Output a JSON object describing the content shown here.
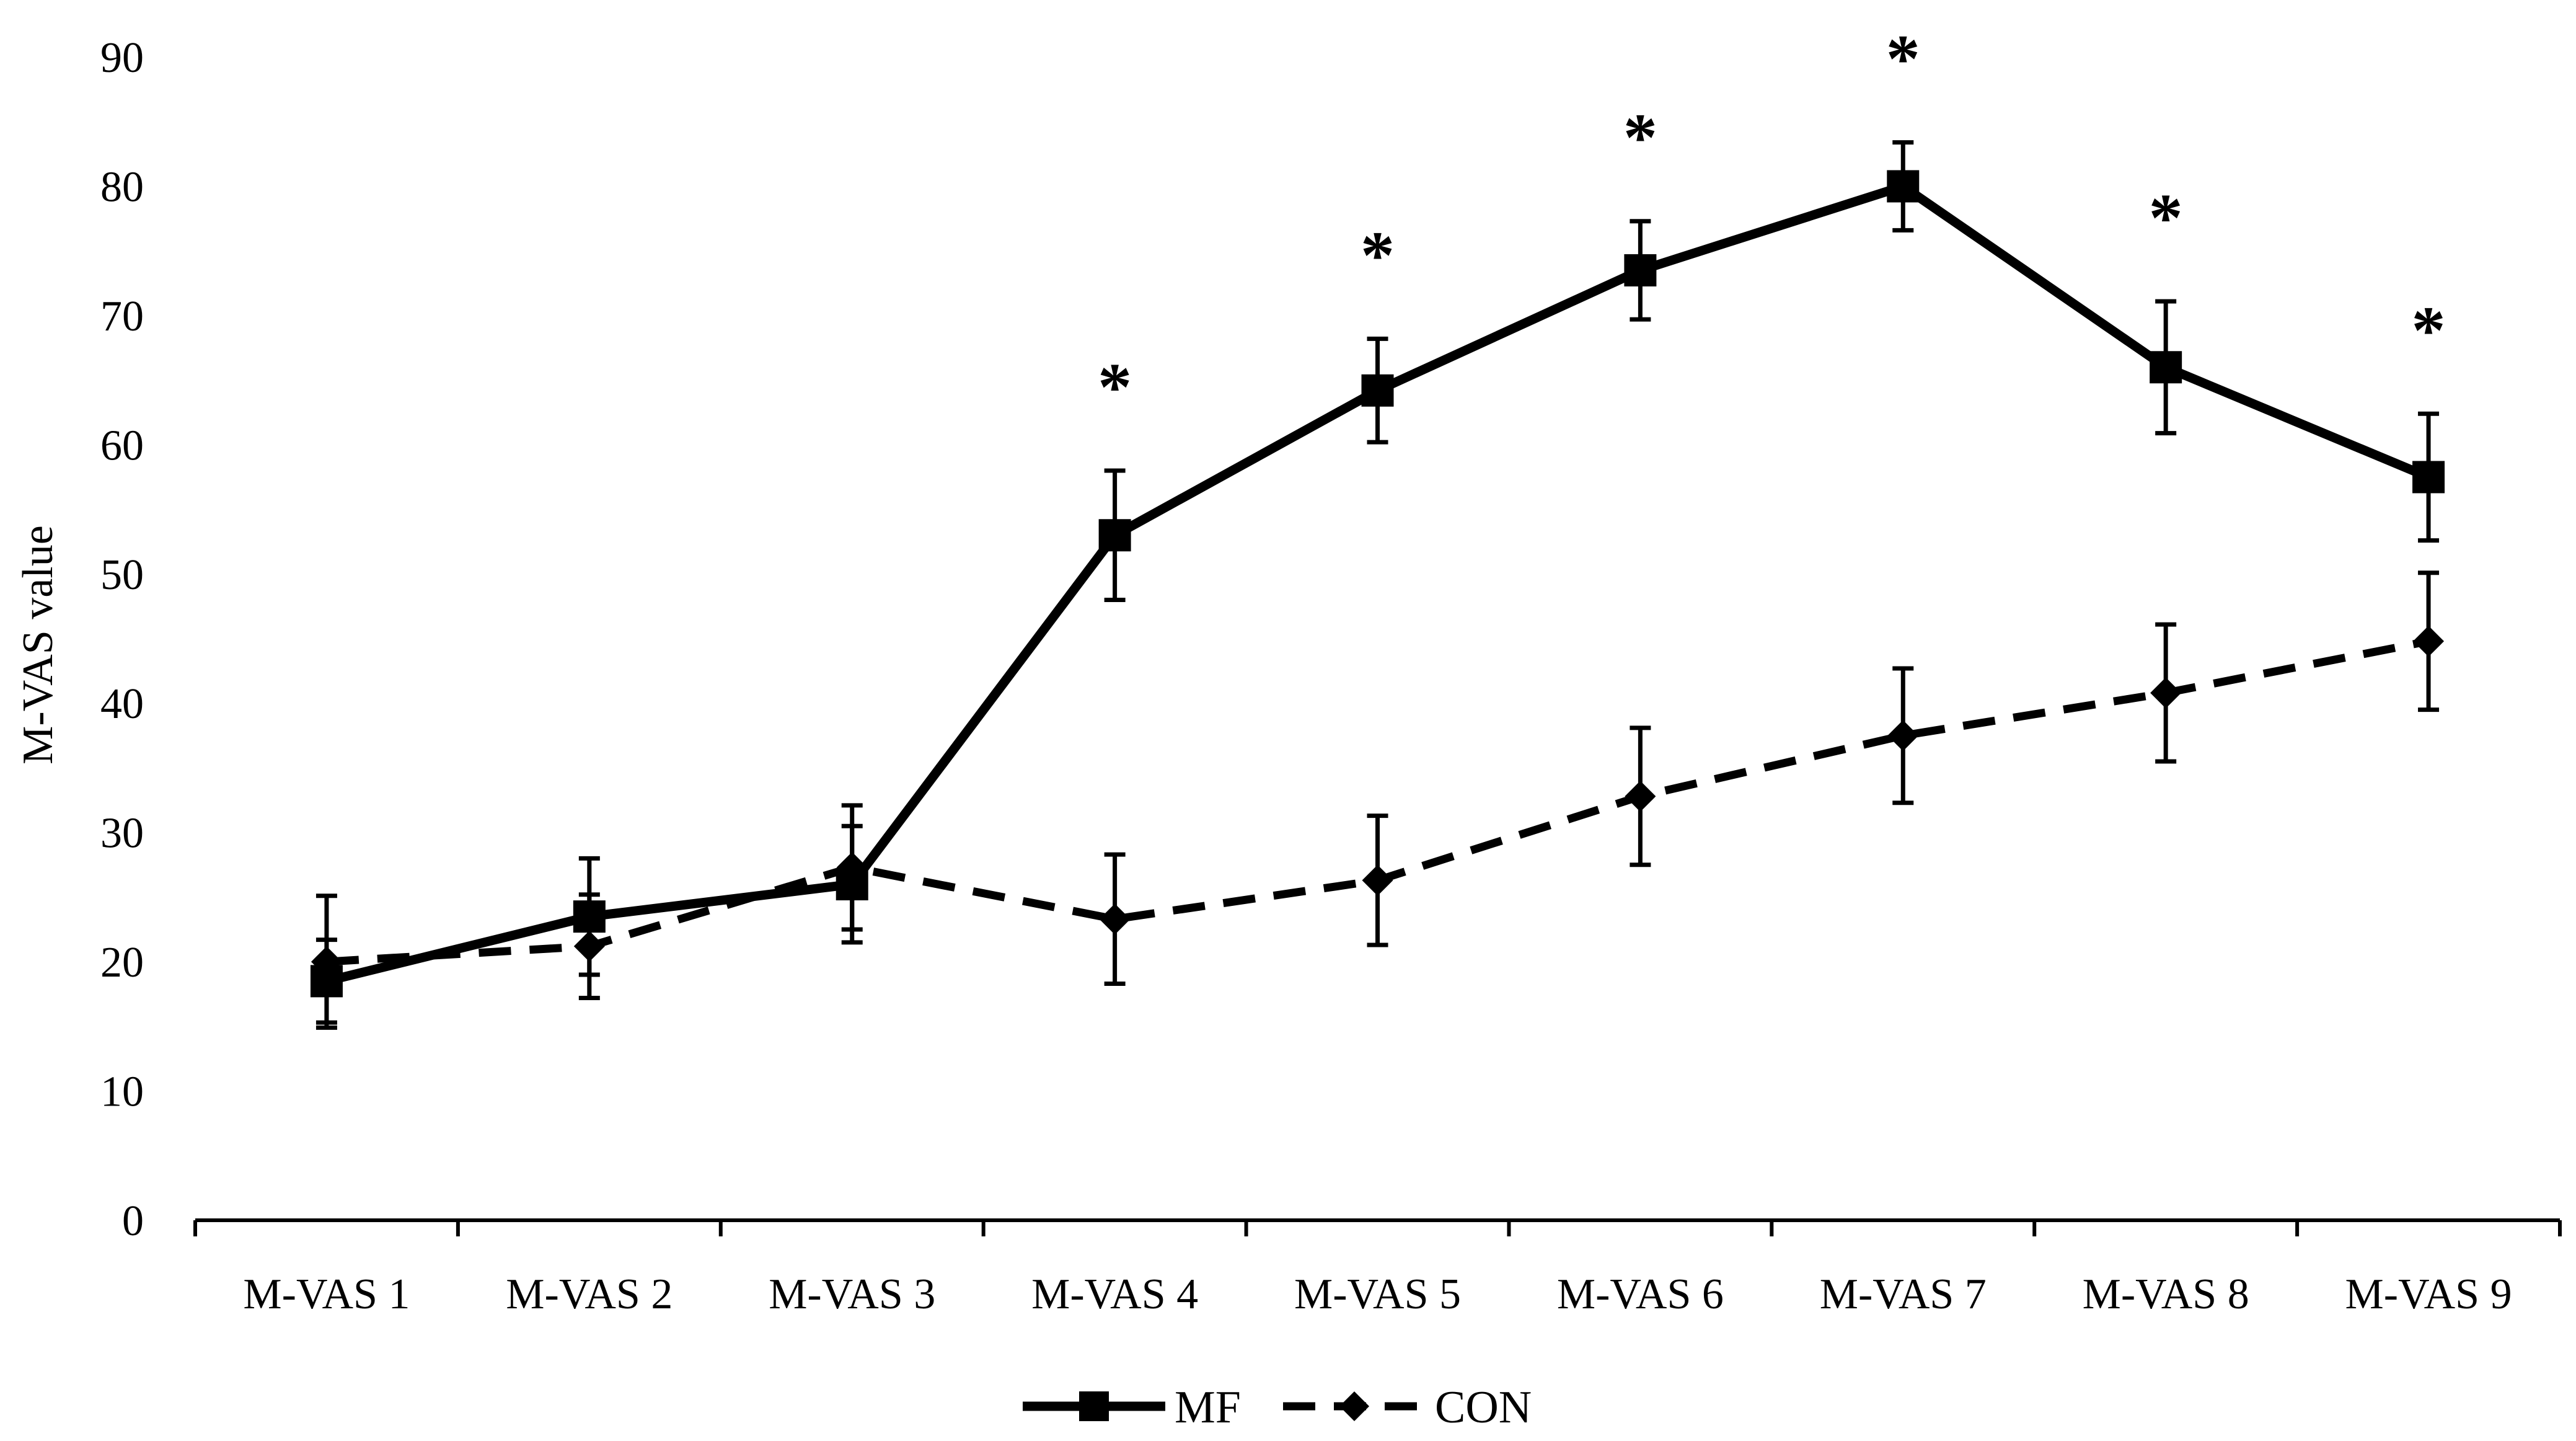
{
  "chart_data": {
    "type": "line",
    "title": "",
    "xlabel": "",
    "ylabel": "M-VAS value",
    "ylim": [
      0,
      90
    ],
    "yticks": [
      0,
      10,
      20,
      30,
      40,
      50,
      60,
      70,
      80,
      90
    ],
    "categories": [
      "M-VAS 1",
      "M-VAS 2",
      "M-VAS 3",
      "M-VAS 4",
      "M-VAS 5",
      "M-VAS 6",
      "M-VAS 7",
      "M-VAS 8",
      "M-VAS 9"
    ],
    "series": [
      {
        "name": "MF",
        "style": "solid",
        "marker": "square",
        "values": [
          18.5,
          23.5,
          26,
          53,
          64.2,
          73.5,
          80,
          66,
          57.5
        ],
        "error": [
          3.2,
          4.5,
          4.5,
          5.0,
          4.0,
          3.8,
          3.4,
          5.1,
          4.9
        ]
      },
      {
        "name": "CON",
        "style": "dashed",
        "marker": "diamond",
        "values": [
          20,
          21.2,
          27.3,
          23.3,
          26.3,
          32.8,
          37.5,
          40.8,
          44.8
        ],
        "error": [
          5.1,
          4.0,
          4.8,
          5.0,
          5.0,
          5.3,
          5.2,
          5.3,
          5.3
        ]
      }
    ],
    "annotations": [
      {
        "category": "M-VAS 4",
        "text": "*"
      },
      {
        "category": "M-VAS 5",
        "text": "*"
      },
      {
        "category": "M-VAS 6",
        "text": "*"
      },
      {
        "category": "M-VAS 7",
        "text": "*"
      },
      {
        "category": "M-VAS 8",
        "text": "*"
      },
      {
        "category": "M-VAS 9",
        "text": "*"
      }
    ],
    "legend": {
      "placement": "bottom-center",
      "entries": [
        "MF",
        "CON"
      ]
    }
  }
}
